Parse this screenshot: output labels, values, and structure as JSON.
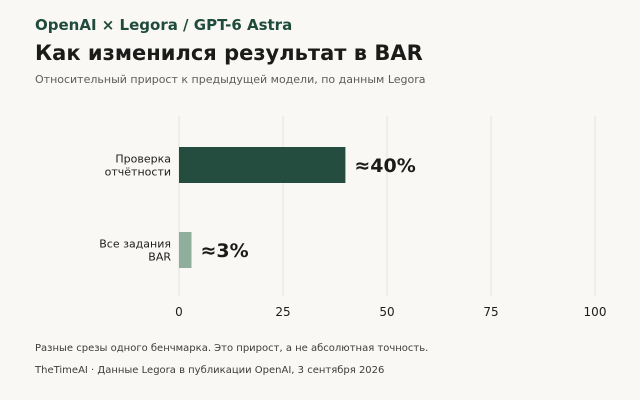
{
  "header": {
    "brand": "OpenAI × Legora / GPT-6 Astra",
    "title": "Как изменился результат в BAR",
    "subtitle": "Относительный прирост к предыдущей модели, по данным Legora"
  },
  "chart_data": {
    "type": "bar",
    "orientation": "horizontal",
    "categories": [
      [
        "Проверка",
        "отчётности"
      ],
      [
        "Все задания",
        "BAR"
      ]
    ],
    "values": [
      40,
      3
    ],
    "value_labels": [
      "≈40%",
      "≈3%"
    ],
    "colors": [
      "#244d3f",
      "#8faf9c"
    ],
    "xlim": [
      0,
      100
    ],
    "xticks": [
      0,
      25,
      50,
      75,
      100
    ],
    "grid": "vertical",
    "title": "Как изменился результат в BAR",
    "xlabel": "",
    "ylabel": ""
  },
  "footer": {
    "note": "Разные срезы одного бенчмарка. Это прирост, а не абсолютная точность.",
    "source": "TheTimeAI · Данные Legora в публикации OpenAI, 3 сентября 2026"
  }
}
